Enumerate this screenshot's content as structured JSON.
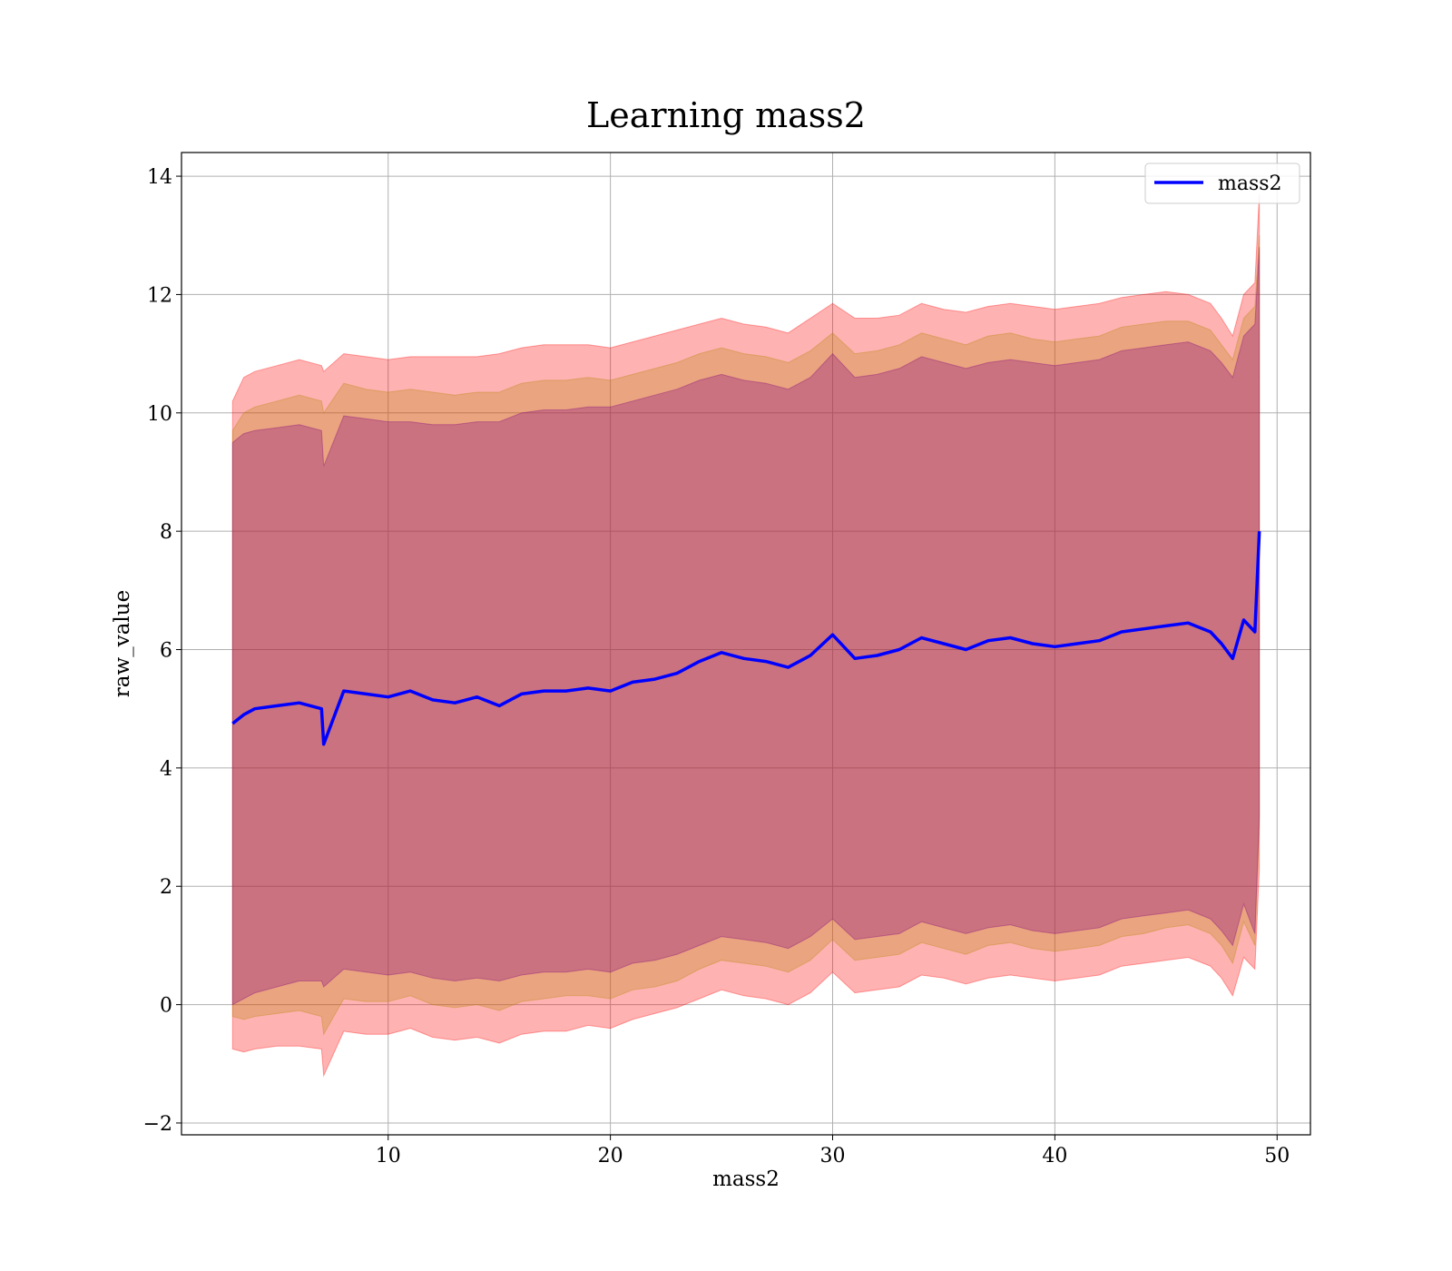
{
  "chart_data": {
    "type": "line",
    "title": "Learning mass2",
    "xlabel": "mass2",
    "ylabel": "raw_value",
    "xlim": [
      0.7,
      51.5
    ],
    "ylim": [
      -2.2,
      14.4
    ],
    "x_ticks": [
      10,
      20,
      30,
      40,
      50
    ],
    "y_ticks": [
      -2,
      0,
      2,
      4,
      6,
      8,
      10,
      12,
      14
    ],
    "x_tick_labels": [
      "10",
      "20",
      "30",
      "40",
      "50"
    ],
    "y_tick_labels": [
      "−2",
      "0",
      "2",
      "4",
      "6",
      "8",
      "10",
      "12",
      "14"
    ],
    "grid": true,
    "legend_position": "top-right",
    "legend": [
      "mass2"
    ],
    "colors": {
      "line": "#0000ff",
      "band_outer": "#ff0000",
      "band_mid": "#b8860b",
      "band_inner": "#800080",
      "grid": "#b0b0b0"
    },
    "series": [
      {
        "name": "mass2",
        "x": [
          3.0,
          3.5,
          4.0,
          5.0,
          6.0,
          7.0,
          7.1,
          8.0,
          9.0,
          10.0,
          11.0,
          12.0,
          13.0,
          14.0,
          15.0,
          16.0,
          17.0,
          18.0,
          19.0,
          20.0,
          21.0,
          22.0,
          23.0,
          24.0,
          25.0,
          26.0,
          27.0,
          28.0,
          29.0,
          30.0,
          31.0,
          32.0,
          33.0,
          34.0,
          35.0,
          36.0,
          37.0,
          38.0,
          39.0,
          40.0,
          41.0,
          42.0,
          43.0,
          44.0,
          45.0,
          46.0,
          47.0,
          47.5,
          48.0,
          48.5,
          49.0,
          49.2
        ],
        "y": [
          4.75,
          4.9,
          5.0,
          5.05,
          5.1,
          5.0,
          4.4,
          5.3,
          5.25,
          5.2,
          5.3,
          5.15,
          5.1,
          5.2,
          5.05,
          5.25,
          5.3,
          5.3,
          5.35,
          5.3,
          5.45,
          5.5,
          5.6,
          5.8,
          5.95,
          5.85,
          5.8,
          5.7,
          5.9,
          6.25,
          5.85,
          5.9,
          6.0,
          6.2,
          6.1,
          6.0,
          6.15,
          6.2,
          6.1,
          6.05,
          6.1,
          6.15,
          6.3,
          6.35,
          6.4,
          6.45,
          6.3,
          6.1,
          5.85,
          6.5,
          6.3,
          8.0
        ]
      }
    ],
    "bands": [
      {
        "name": "outer",
        "upper": [
          10.2,
          10.6,
          10.7,
          10.8,
          10.9,
          10.8,
          10.7,
          11.0,
          10.95,
          10.9,
          10.95,
          10.95,
          10.95,
          10.95,
          11.0,
          11.1,
          11.15,
          11.15,
          11.15,
          11.1,
          11.2,
          11.3,
          11.4,
          11.5,
          11.6,
          11.5,
          11.45,
          11.35,
          11.6,
          11.85,
          11.6,
          11.6,
          11.65,
          11.85,
          11.75,
          11.7,
          11.8,
          11.85,
          11.8,
          11.75,
          11.8,
          11.85,
          11.95,
          12.0,
          12.05,
          12.0,
          11.85,
          11.6,
          11.3,
          12.0,
          12.2,
          13.7
        ],
        "lower": [
          -0.75,
          -0.8,
          -0.75,
          -0.7,
          -0.7,
          -0.75,
          -1.2,
          -0.45,
          -0.5,
          -0.5,
          -0.4,
          -0.55,
          -0.6,
          -0.55,
          -0.65,
          -0.5,
          -0.45,
          -0.45,
          -0.35,
          -0.4,
          -0.25,
          -0.15,
          -0.05,
          0.1,
          0.25,
          0.15,
          0.1,
          0.0,
          0.2,
          0.55,
          0.2,
          0.25,
          0.3,
          0.5,
          0.45,
          0.35,
          0.45,
          0.5,
          0.45,
          0.4,
          0.45,
          0.5,
          0.65,
          0.7,
          0.75,
          0.8,
          0.65,
          0.45,
          0.15,
          0.8,
          0.6,
          2.3
        ]
      },
      {
        "name": "middle",
        "upper": [
          9.7,
          10.0,
          10.1,
          10.2,
          10.3,
          10.2,
          10.0,
          10.5,
          10.4,
          10.35,
          10.4,
          10.35,
          10.3,
          10.35,
          10.35,
          10.5,
          10.55,
          10.55,
          10.6,
          10.55,
          10.65,
          10.75,
          10.85,
          11.0,
          11.1,
          11.0,
          10.95,
          10.85,
          11.05,
          11.35,
          11.0,
          11.05,
          11.15,
          11.35,
          11.25,
          11.15,
          11.3,
          11.35,
          11.25,
          11.2,
          11.25,
          11.3,
          11.45,
          11.5,
          11.55,
          11.55,
          11.4,
          11.15,
          10.9,
          11.6,
          11.8,
          13.0
        ],
        "lower": [
          -0.2,
          -0.25,
          -0.2,
          -0.15,
          -0.1,
          -0.2,
          -0.5,
          0.1,
          0.05,
          0.05,
          0.15,
          0.0,
          -0.05,
          0.0,
          -0.1,
          0.05,
          0.1,
          0.15,
          0.15,
          0.1,
          0.25,
          0.3,
          0.4,
          0.6,
          0.75,
          0.7,
          0.65,
          0.55,
          0.75,
          1.1,
          0.75,
          0.8,
          0.85,
          1.05,
          0.95,
          0.85,
          1.0,
          1.05,
          0.95,
          0.9,
          0.95,
          1.0,
          1.15,
          1.2,
          1.3,
          1.35,
          1.2,
          1.0,
          0.7,
          1.4,
          1.0,
          3.0
        ]
      },
      {
        "name": "inner",
        "upper": [
          9.5,
          9.65,
          9.7,
          9.75,
          9.8,
          9.7,
          9.1,
          9.95,
          9.9,
          9.85,
          9.85,
          9.8,
          9.8,
          9.85,
          9.85,
          10.0,
          10.05,
          10.05,
          10.1,
          10.1,
          10.2,
          10.3,
          10.4,
          10.55,
          10.65,
          10.55,
          10.5,
          10.4,
          10.6,
          11.0,
          10.6,
          10.65,
          10.75,
          10.95,
          10.85,
          10.75,
          10.85,
          10.9,
          10.85,
          10.8,
          10.85,
          10.9,
          11.05,
          11.1,
          11.15,
          11.2,
          11.05,
          10.85,
          10.6,
          11.3,
          11.5,
          12.8
        ],
        "lower": [
          0.0,
          0.1,
          0.2,
          0.3,
          0.4,
          0.4,
          0.3,
          0.6,
          0.55,
          0.5,
          0.55,
          0.45,
          0.4,
          0.45,
          0.4,
          0.5,
          0.55,
          0.55,
          0.6,
          0.55,
          0.7,
          0.75,
          0.85,
          1.0,
          1.15,
          1.1,
          1.05,
          0.95,
          1.15,
          1.45,
          1.1,
          1.15,
          1.2,
          1.4,
          1.3,
          1.2,
          1.3,
          1.35,
          1.25,
          1.2,
          1.25,
          1.3,
          1.45,
          1.5,
          1.55,
          1.6,
          1.45,
          1.25,
          1.0,
          1.7,
          1.2,
          3.2
        ]
      }
    ]
  }
}
